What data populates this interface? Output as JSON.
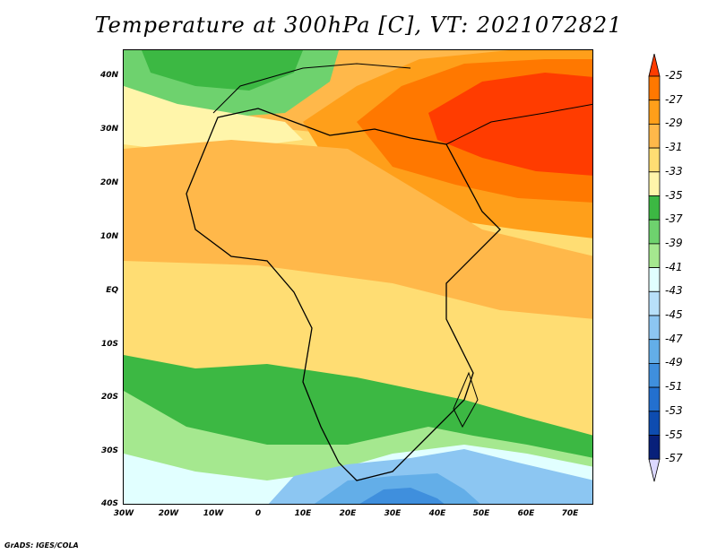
{
  "title": "Temperature at 300hPa [C], VT: 2021072821",
  "credit": "GrADS: IGES/COLA",
  "map": {
    "region": "Africa and surroundings",
    "lat_labels": [
      "40N",
      "30N",
      "20N",
      "10N",
      "EQ",
      "10S",
      "20S",
      "30S",
      "40S"
    ],
    "lon_labels": [
      "30W",
      "20W",
      "10W",
      "0",
      "10E",
      "20E",
      "30E",
      "40E",
      "50E",
      "60E",
      "70E"
    ]
  },
  "colorbar": {
    "labels": [
      "-25",
      "-27",
      "-29",
      "-31",
      "-33",
      "-35",
      "-37",
      "-39",
      "-41",
      "-43",
      "-45",
      "-47",
      "-49",
      "-51",
      "-53",
      "-55",
      "-57"
    ],
    "colors": [
      "#ff3c00",
      "#ff7800",
      "#ff9f1a",
      "#ffb84a",
      "#ffdd73",
      "#fff5aa",
      "#3cb843",
      "#6ed26e",
      "#a5e88f",
      "#e1ffff",
      "#b8e0fa",
      "#8cc6f2",
      "#63aee8",
      "#3f8fdd",
      "#2370cf",
      "#0e4cb0",
      "#08207a"
    ]
  }
}
